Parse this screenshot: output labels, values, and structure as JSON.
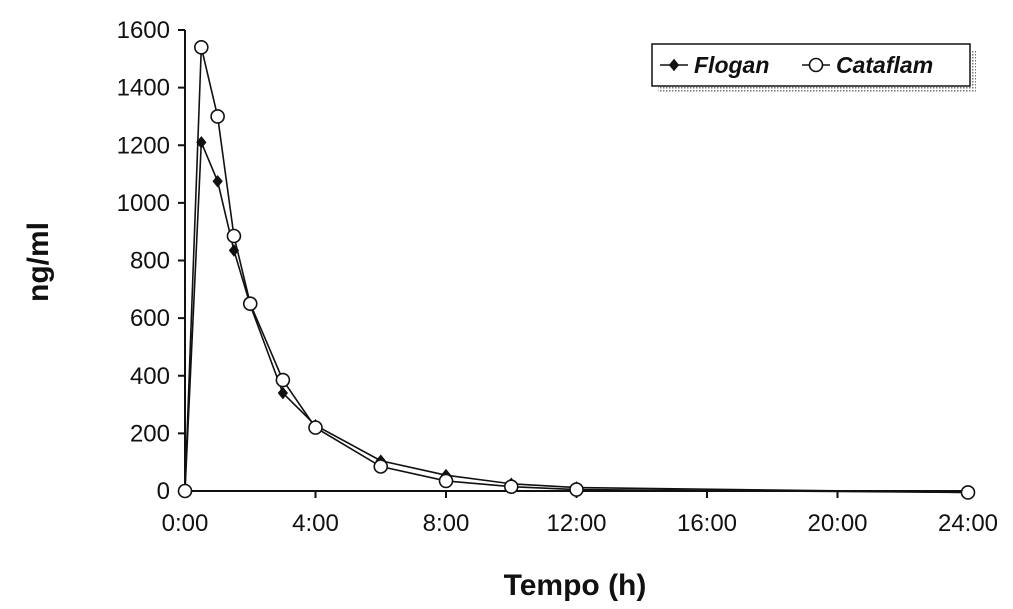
{
  "chart_data": {
    "type": "line",
    "title": "",
    "xlabel": "Tempo (h)",
    "ylabel": "ng/ml",
    "xlim": [
      0,
      24
    ],
    "ylim": [
      0,
      1600
    ],
    "x_ticks": [
      {
        "value": 0,
        "label": "0:00"
      },
      {
        "value": 4,
        "label": "4:00"
      },
      {
        "value": 8,
        "label": "8:00"
      },
      {
        "value": 12,
        "label": "12:00"
      },
      {
        "value": 16,
        "label": "16:00"
      },
      {
        "value": 20,
        "label": "20:00"
      },
      {
        "value": 24,
        "label": "24:00"
      }
    ],
    "y_ticks": [
      {
        "value": 0,
        "label": "0"
      },
      {
        "value": 200,
        "label": "200"
      },
      {
        "value": 400,
        "label": "400"
      },
      {
        "value": 600,
        "label": "600"
      },
      {
        "value": 800,
        "label": "800"
      },
      {
        "value": 1000,
        "label": "1000"
      },
      {
        "value": 1200,
        "label": "1200"
      },
      {
        "value": 1400,
        "label": "1400"
      },
      {
        "value": 1600,
        "label": "1600"
      }
    ],
    "grid": false,
    "legend_position": "top-right",
    "series": [
      {
        "name": "Flogan",
        "marker": "filled-diamond",
        "color": "#111111",
        "points": [
          {
            "x": 0,
            "y": 0
          },
          {
            "x": 0.5,
            "y": 1210
          },
          {
            "x": 1,
            "y": 1075
          },
          {
            "x": 1.5,
            "y": 835
          },
          {
            "x": 2,
            "y": 645
          },
          {
            "x": 3,
            "y": 340
          },
          {
            "x": 4,
            "y": 228
          },
          {
            "x": 6,
            "y": 105
          },
          {
            "x": 8,
            "y": 55
          },
          {
            "x": 10,
            "y": 25
          },
          {
            "x": 12,
            "y": 12
          },
          {
            "x": 24,
            "y": -5
          }
        ]
      },
      {
        "name": "Cataflam",
        "marker": "open-circle",
        "color": "#111111",
        "points": [
          {
            "x": 0,
            "y": 0
          },
          {
            "x": 0.5,
            "y": 1540
          },
          {
            "x": 1,
            "y": 1300
          },
          {
            "x": 1.5,
            "y": 885
          },
          {
            "x": 2,
            "y": 650
          },
          {
            "x": 3,
            "y": 385
          },
          {
            "x": 4,
            "y": 220
          },
          {
            "x": 6,
            "y": 85
          },
          {
            "x": 8,
            "y": 35
          },
          {
            "x": 10,
            "y": 15
          },
          {
            "x": 12,
            "y": 5
          },
          {
            "x": 24,
            "y": -5
          }
        ]
      }
    ]
  }
}
